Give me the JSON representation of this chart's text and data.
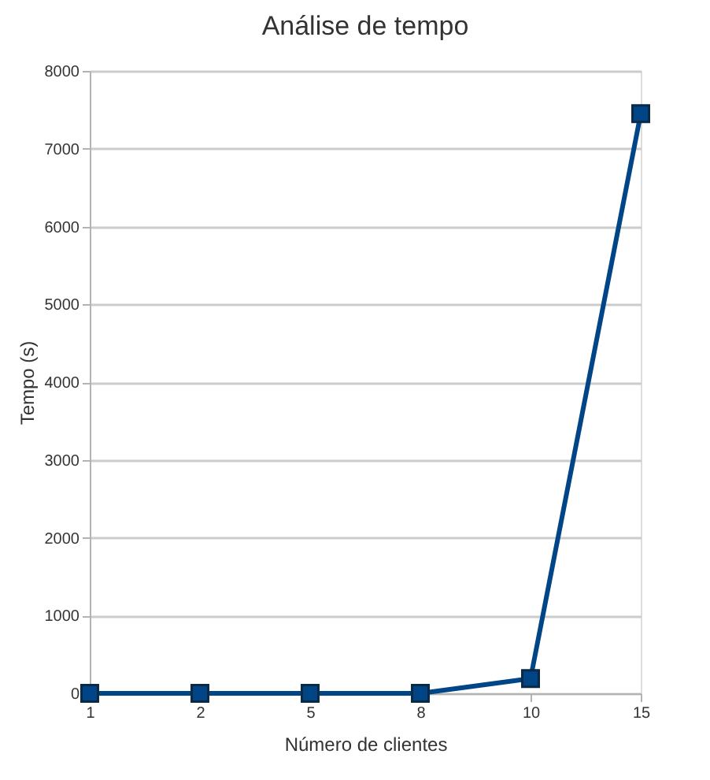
{
  "chart_data": {
    "type": "line",
    "title": "Análise de tempo",
    "xlabel": "Número de clientes",
    "ylabel": "Tempo (s)",
    "categories": [
      "1",
      "2",
      "5",
      "8",
      "10",
      "15"
    ],
    "series": [
      {
        "color": "#004586",
        "values": [
          0,
          0,
          0,
          0,
          190,
          7450
        ]
      }
    ],
    "ylim": [
      0,
      8000
    ],
    "yticks": [
      0,
      1000,
      2000,
      3000,
      4000,
      5000,
      6000,
      7000,
      8000
    ],
    "grid": "y",
    "marker": "square",
    "line_style": "solid",
    "legend": false
  }
}
